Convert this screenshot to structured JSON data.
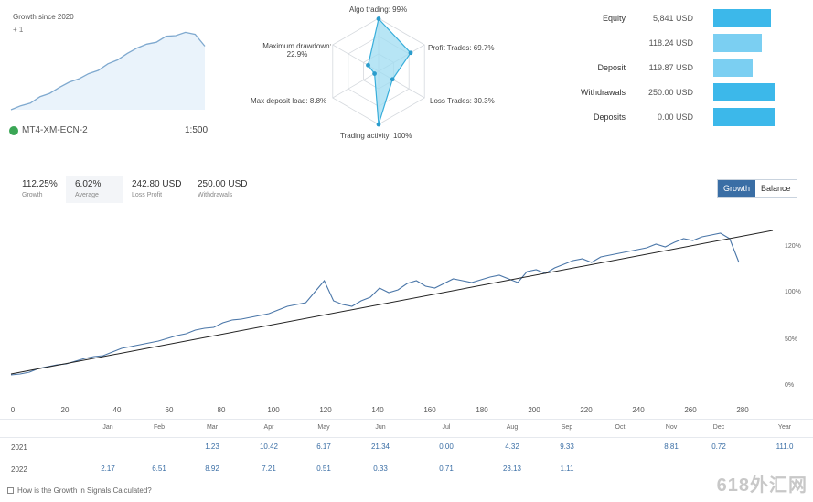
{
  "mini": {
    "title": "Growth since 2020",
    "subtitle": "+ 1",
    "account": "MT4-XM-ECN-2",
    "leverage": "1:500",
    "series": [
      0,
      6,
      10,
      20,
      25,
      34,
      42,
      47,
      55,
      60,
      70,
      76,
      86,
      94,
      100,
      103,
      112,
      113,
      118,
      115,
      97
    ]
  },
  "radar": {
    "labels": {
      "algo": "Algo trading: 99%",
      "profit": "Profit Trades: 69.7%",
      "loss": "Loss Trades: 30.3%",
      "activity": "Trading activity: 100%",
      "load": "Max deposit load: 8.8%",
      "drawdown": "Maximum drawdown: 22.9%"
    },
    "values": [
      99,
      69.7,
      30.3,
      100,
      8.8,
      22.9
    ]
  },
  "summary": [
    {
      "label": "Equity",
      "value": "5,841 USD",
      "fill": 0.9,
      "color": "#3cb8ea"
    },
    {
      "label": "",
      "value": "118.24 USD",
      "fill": 0.75,
      "color": "#7bcff2"
    },
    {
      "label": "Deposit",
      "value": "119.87 USD",
      "fill": 0.62,
      "color": "#7bcff2"
    },
    {
      "label": "Withdrawals",
      "value": "250.00 USD",
      "fill": 0.96,
      "color": "#3cb8ea"
    },
    {
      "label": "Deposits",
      "value": "0.00 USD",
      "fill": 0.96,
      "color": "#3cb8ea"
    }
  ],
  "stats": [
    {
      "value": "112.25%",
      "label": "Growth"
    },
    {
      "value": "6.02%",
      "label": "Average"
    },
    {
      "value": "242.80 USD",
      "label": "Loss Profit"
    },
    {
      "value": "250.00 USD",
      "label": "Withdrawals"
    }
  ],
  "toggle": {
    "active": "Growth",
    "inactive": "Balance"
  },
  "chart_data": {
    "type": "line",
    "x_ticks": [
      "0",
      "20",
      "40",
      "60",
      "80",
      "100",
      "120",
      "140",
      "160",
      "180",
      "200",
      "220",
      "240",
      "260",
      "280"
    ],
    "y_ticks": [
      "120%",
      "100%",
      "50%",
      "0%"
    ],
    "series": [
      {
        "values": [
          -5,
          -4,
          -2,
          2,
          4,
          6,
          7,
          10,
          13,
          15,
          16,
          20,
          24,
          26,
          28,
          30,
          32,
          35,
          38,
          40,
          44,
          46,
          47,
          52,
          55,
          56,
          58,
          60,
          62,
          66,
          70,
          72,
          74,
          86,
          98,
          76,
          72,
          70,
          76,
          80,
          90,
          85,
          88,
          95,
          98,
          92,
          90,
          95,
          100,
          98,
          96,
          99,
          102,
          104,
          100,
          96,
          108,
          110,
          106,
          112,
          116,
          120,
          122,
          118,
          124,
          126,
          128,
          130,
          132,
          134,
          138,
          135,
          140,
          144,
          142,
          146,
          148,
          150,
          144,
          118
        ]
      }
    ],
    "trend": [
      -4,
      145
    ]
  },
  "months": [
    "Jan",
    "Feb",
    "Mar",
    "Apr",
    "May",
    "Jun",
    "Jul",
    "Aug",
    "Sep",
    "Oct",
    "Nov",
    "Dec",
    "Year"
  ],
  "table": {
    "row1": {
      "label": "2021",
      "cells": [
        "",
        "",
        "1.23",
        "10.42",
        "6.17",
        "21.34",
        "0.00",
        "4.32",
        "9.33",
        "",
        "8.81",
        "0.72",
        "111.0"
      ]
    },
    "row2": {
      "label": "2022",
      "cells": [
        "2.17",
        "6.51",
        "8.92",
        "7.21",
        "0.51",
        "0.33",
        "0.71",
        "23.13",
        "1.11",
        "",
        "",
        "",
        ""
      ]
    }
  },
  "footnote": "How is the Growth in Signals Calculated?",
  "watermark": "618外汇网"
}
